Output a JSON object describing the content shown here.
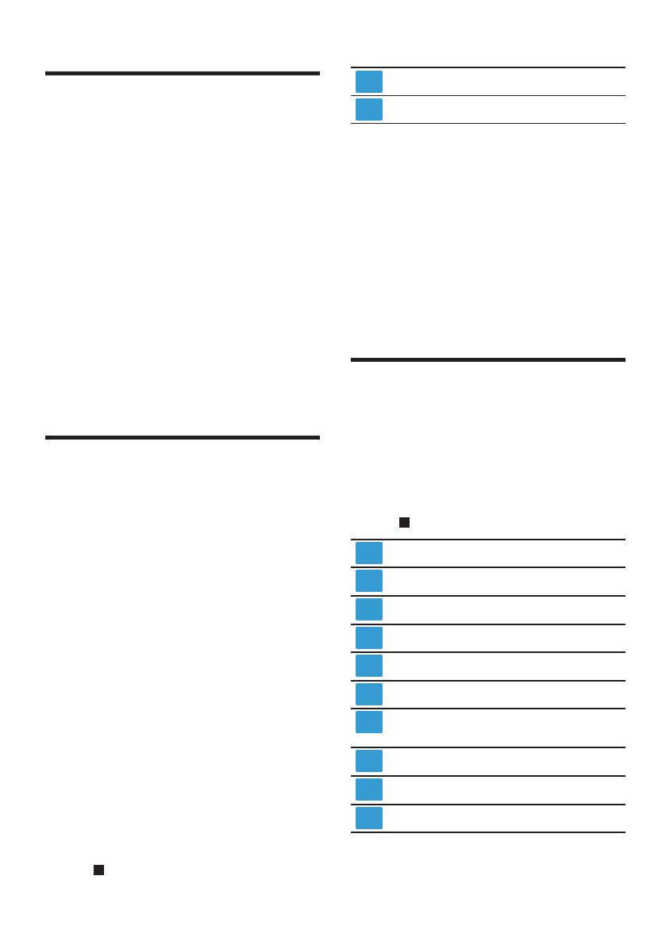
{
  "colors": {
    "rule": "#231f20",
    "icon_box": "#359bd1"
  },
  "icons": {
    "row_marker": "blue-square-icon",
    "bullet": "black-square-icon"
  }
}
